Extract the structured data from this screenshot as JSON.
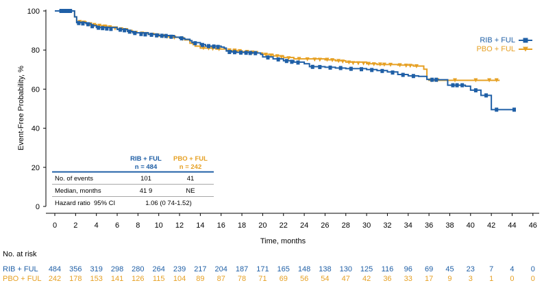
{
  "chart_data": {
    "type": "line",
    "ylabel": "Event-Free Probability, %",
    "xlabel": "Time, months",
    "xlim": [
      0,
      46
    ],
    "ylim": [
      0,
      100
    ],
    "x_ticks": [
      0,
      2,
      4,
      6,
      8,
      10,
      12,
      14,
      16,
      18,
      20,
      22,
      24,
      26,
      28,
      30,
      32,
      34,
      36,
      38,
      40,
      42,
      44,
      46
    ],
    "y_ticks": [
      0,
      20,
      40,
      60,
      80,
      100
    ],
    "colors": {
      "rib": "#1f5fa6",
      "pbo": "#e6a023"
    },
    "series": [
      {
        "name": "RIB + FUL",
        "color": "#1f5fa6",
        "points": [
          [
            0,
            100
          ],
          [
            1.9,
            100
          ],
          [
            1.9,
            97
          ],
          [
            2.1,
            97
          ],
          [
            2.1,
            94
          ],
          [
            3,
            93.5
          ],
          [
            3.5,
            92.5
          ],
          [
            4,
            91.5
          ],
          [
            6,
            90.5
          ],
          [
            7,
            89.5
          ],
          [
            7.5,
            88.8
          ],
          [
            9,
            88
          ],
          [
            10,
            87.4
          ],
          [
            11.5,
            86.6
          ],
          [
            12,
            86
          ],
          [
            12.5,
            85.5
          ],
          [
            13,
            84.8
          ],
          [
            13.2,
            83.8
          ],
          [
            14,
            82.8
          ],
          [
            14.5,
            82
          ],
          [
            16,
            81.5
          ],
          [
            16.3,
            81
          ],
          [
            16.5,
            79.5
          ],
          [
            17,
            79
          ],
          [
            17.5,
            78.8
          ],
          [
            19,
            78.5
          ],
          [
            19.8,
            77.8
          ],
          [
            20,
            76.5
          ],
          [
            21,
            75.5
          ],
          [
            22,
            74.5
          ],
          [
            23,
            73.8
          ],
          [
            24,
            73
          ],
          [
            24.5,
            71.5
          ],
          [
            26,
            71.2
          ],
          [
            27,
            70.8
          ],
          [
            28,
            70.5
          ],
          [
            30,
            70
          ],
          [
            31,
            69.5
          ],
          [
            32,
            68.8
          ],
          [
            33,
            67.5
          ],
          [
            34,
            66.8
          ],
          [
            35,
            66.5
          ],
          [
            35.8,
            65
          ],
          [
            36,
            64.8
          ],
          [
            37,
            64.8
          ],
          [
            37.8,
            62
          ],
          [
            39,
            62
          ],
          [
            39.5,
            61.5
          ],
          [
            40,
            59.5
          ],
          [
            41,
            56.8
          ],
          [
            41.9,
            56.8
          ],
          [
            42,
            49.5
          ],
          [
            44.2,
            49.5
          ]
        ],
        "censors": [
          [
            0.6,
            100
          ],
          [
            0.9,
            100
          ],
          [
            1.2,
            100
          ],
          [
            1.5,
            100
          ],
          [
            2.3,
            93.8
          ],
          [
            2.7,
            93.6
          ],
          [
            3.2,
            93.2
          ],
          [
            3.6,
            92.2
          ],
          [
            4.2,
            91.4
          ],
          [
            4.6,
            91.2
          ],
          [
            5,
            91
          ],
          [
            5.4,
            90.8
          ],
          [
            6.3,
            90.4
          ],
          [
            6.7,
            90.1
          ],
          [
            7.2,
            89.4
          ],
          [
            7.7,
            88.7
          ],
          [
            8.3,
            88.2
          ],
          [
            8.7,
            88
          ],
          [
            9.3,
            87.8
          ],
          [
            9.8,
            87.5
          ],
          [
            10.3,
            87.3
          ],
          [
            10.7,
            87.2
          ],
          [
            11.2,
            86.8
          ],
          [
            12.2,
            86
          ],
          [
            13.5,
            83.5
          ],
          [
            14.2,
            82.6
          ],
          [
            14.8,
            82
          ],
          [
            15.3,
            81.8
          ],
          [
            15.7,
            81.6
          ],
          [
            16.8,
            79
          ],
          [
            17.3,
            78.9
          ],
          [
            17.9,
            78.7
          ],
          [
            18.4,
            78.6
          ],
          [
            18.8,
            78.5
          ],
          [
            19.3,
            78.4
          ],
          [
            20.5,
            76.2
          ],
          [
            21.5,
            75.2
          ],
          [
            22.3,
            74.4
          ],
          [
            22.8,
            74
          ],
          [
            23.4,
            73.6
          ],
          [
            24.8,
            71.4
          ],
          [
            25.5,
            71.3
          ],
          [
            26.5,
            71
          ],
          [
            27.5,
            70.8
          ],
          [
            28.5,
            70.4
          ],
          [
            29.5,
            70.2
          ],
          [
            30.5,
            69.8
          ],
          [
            31.5,
            69.3
          ],
          [
            32.5,
            68.5
          ],
          [
            33.5,
            67.3
          ],
          [
            34.5,
            66.7
          ],
          [
            36.3,
            64.8
          ],
          [
            36.7,
            64.8
          ],
          [
            38.3,
            62
          ],
          [
            38.7,
            62
          ],
          [
            39.2,
            62
          ],
          [
            40.5,
            59.4
          ],
          [
            41.5,
            56.8
          ],
          [
            42.5,
            49.5
          ],
          [
            44.2,
            49.5
          ]
        ]
      },
      {
        "name": "PBO + FUL",
        "color": "#e6a023",
        "points": [
          [
            0,
            100
          ],
          [
            1.9,
            100
          ],
          [
            1.9,
            97
          ],
          [
            2.1,
            97
          ],
          [
            2.1,
            94.5
          ],
          [
            3,
            93.8
          ],
          [
            3.5,
            93
          ],
          [
            4,
            92.5
          ],
          [
            5,
            91.8
          ],
          [
            6,
            90.8
          ],
          [
            7,
            89.7
          ],
          [
            7.5,
            88.8
          ],
          [
            9,
            88.2
          ],
          [
            10,
            87.2
          ],
          [
            11,
            86.5
          ],
          [
            12,
            86
          ],
          [
            12.5,
            85.2
          ],
          [
            13,
            83.5
          ],
          [
            13.5,
            82
          ],
          [
            14,
            81
          ],
          [
            15.5,
            80.5
          ],
          [
            16.5,
            79.8
          ],
          [
            17.5,
            79.6
          ],
          [
            18,
            79.2
          ],
          [
            19.5,
            78.5
          ],
          [
            20,
            77.8
          ],
          [
            21,
            77
          ],
          [
            22,
            76.2
          ],
          [
            23,
            75.5
          ],
          [
            26,
            75
          ],
          [
            27,
            74.5
          ],
          [
            28,
            73.8
          ],
          [
            30,
            73
          ],
          [
            31,
            72.6
          ],
          [
            33,
            72.3
          ],
          [
            34.5,
            71.8
          ],
          [
            35.5,
            70.2
          ],
          [
            35.8,
            65
          ],
          [
            36,
            64.5
          ],
          [
            42.8,
            64.5
          ]
        ],
        "censors": [
          [
            0.8,
            100
          ],
          [
            1.3,
            100
          ],
          [
            2.4,
            94.3
          ],
          [
            2.8,
            94
          ],
          [
            3.4,
            93.2
          ],
          [
            3.8,
            92.8
          ],
          [
            4.3,
            92.4
          ],
          [
            4.8,
            92
          ],
          [
            5.3,
            91.6
          ],
          [
            5.8,
            91
          ],
          [
            6.4,
            90.6
          ],
          [
            6.8,
            90.2
          ],
          [
            7.3,
            89.4
          ],
          [
            7.8,
            88.8
          ],
          [
            8.4,
            88.4
          ],
          [
            8.8,
            88.2
          ],
          [
            9.4,
            87.8
          ],
          [
            9.8,
            87.4
          ],
          [
            10.4,
            87
          ],
          [
            10.8,
            86.7
          ],
          [
            11.5,
            86.3
          ],
          [
            12.3,
            85.6
          ],
          [
            13.3,
            83.2
          ],
          [
            14.3,
            81
          ],
          [
            14.8,
            80.8
          ],
          [
            15.2,
            80.6
          ],
          [
            15.8,
            80.4
          ],
          [
            16.8,
            79.8
          ],
          [
            17.3,
            79.7
          ],
          [
            17.8,
            79.4
          ],
          [
            18.5,
            79
          ],
          [
            19,
            78.7
          ],
          [
            20.3,
            77.6
          ],
          [
            20.8,
            77.2
          ],
          [
            21.4,
            76.8
          ],
          [
            21.8,
            76.4
          ],
          [
            22.5,
            75.8
          ],
          [
            23.5,
            75.4
          ],
          [
            24.3,
            75.2
          ],
          [
            25,
            75.1
          ],
          [
            25.5,
            75
          ],
          [
            26.2,
            75
          ],
          [
            26.7,
            74.8
          ],
          [
            27.3,
            74.4
          ],
          [
            27.7,
            74.1
          ],
          [
            28.3,
            73.6
          ],
          [
            28.7,
            73.3
          ],
          [
            29.2,
            73.2
          ],
          [
            29.7,
            73.1
          ],
          [
            30.2,
            72.9
          ],
          [
            30.7,
            72.7
          ],
          [
            31.3,
            72.6
          ],
          [
            31.7,
            72.5
          ],
          [
            32.3,
            72.4
          ],
          [
            33.2,
            72.2
          ],
          [
            33.8,
            72
          ],
          [
            34.2,
            71.9
          ],
          [
            34.8,
            71.7
          ],
          [
            36.2,
            64.5
          ],
          [
            36.8,
            64.5
          ],
          [
            38.5,
            64.5
          ],
          [
            40.5,
            64.5
          ],
          [
            41.8,
            64.5
          ],
          [
            42.5,
            64.5
          ]
        ]
      }
    ],
    "legend": {
      "position": "top-right",
      "entries": [
        {
          "label": "RIB + FUL",
          "color": "#1f5fa6"
        },
        {
          "label": "PBO + FUL",
          "color": "#e6a023"
        }
      ]
    },
    "stats_table": {
      "headers": {
        "rib_line1": "RIB + FUL",
        "rib_line2": "n = 484",
        "pbo_line1": "PBO + FUL",
        "pbo_line2": "n = 242"
      },
      "rows": [
        {
          "label": "No. of events",
          "rib": "101",
          "pbo": "41"
        },
        {
          "label": "Median, months",
          "rib": "41 9",
          "pbo": "NE"
        }
      ],
      "hazard": {
        "label": "Hazard ratio  95% CI",
        "value": "1.06 (0 74-1.52)"
      }
    },
    "at_risk": {
      "title": "No. at risk",
      "rows": [
        {
          "label": "RIB + FUL",
          "color": "#1f5fa6",
          "values": [
            "484",
            "356",
            "319",
            "298",
            "280",
            "264",
            "239",
            "217",
            "204",
            "187",
            "171",
            "165",
            "148",
            "138",
            "130",
            "125",
            "116",
            "96",
            "69",
            "45",
            "23",
            "7",
            "4",
            "0"
          ]
        },
        {
          "label": "PBO + FUL",
          "color": "#e6a023",
          "values": [
            "242",
            "178",
            "153",
            "141",
            "126",
            "115",
            "104",
            "89",
            "87",
            "78",
            "71",
            "69",
            "56",
            "54",
            "47",
            "42",
            "36",
            "33",
            "17",
            "9",
            "3",
            "1",
            "0",
            "0"
          ]
        }
      ]
    }
  }
}
